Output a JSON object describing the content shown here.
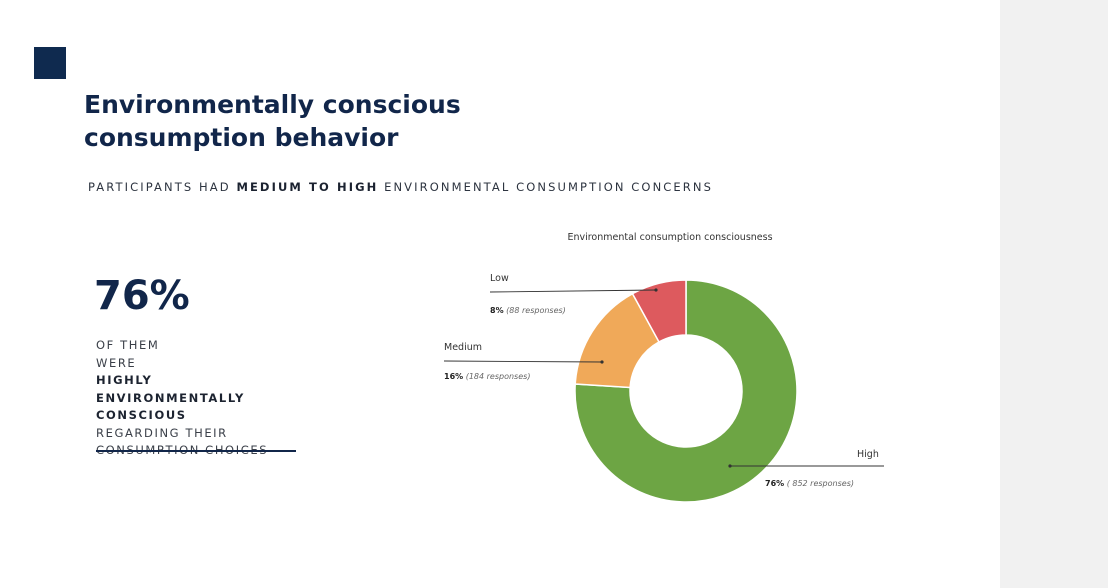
{
  "slide": {
    "title_line1": "Environmentally conscious",
    "title_line2": "consumption behavior",
    "subtitle_pre": "PARTICIPANTS HAD ",
    "subtitle_bold": "MEDIUM TO HIGH",
    "subtitle_post": " ENVIRONMENTAL CONSUMPTION CONCERNS",
    "stat_value": "76%",
    "stat_line1": "OF THEM",
    "stat_line2_pre": "WERE ",
    "stat_line2_bold": "HIGHLY",
    "stat_line3_bold": "ENVIRONMENTALLY",
    "stat_line4_bold": "CONSCIOUS",
    "stat_line4_post": " REGARDING THEIR",
    "stat_line5": "CONSUMPTION CHOICES"
  },
  "colors": {
    "navy": "#11264a",
    "high": "#6da544",
    "medium": "#f0a959",
    "low": "#dd5a5e"
  },
  "chart_data": {
    "type": "pie",
    "title": "Environmental consumption consciousness",
    "hole": true,
    "slices": [
      {
        "label": "High",
        "percent": "76%",
        "responses": "( 852 responses)",
        "value": 76,
        "color": "#6da544"
      },
      {
        "label": "Medium",
        "percent": "16%",
        "responses": "(184 responses)",
        "value": 16,
        "color": "#f0a959"
      },
      {
        "label": "Low",
        "percent": "8%",
        "responses": "(88 responses)",
        "value": 8,
        "color": "#dd5a5e"
      }
    ]
  }
}
